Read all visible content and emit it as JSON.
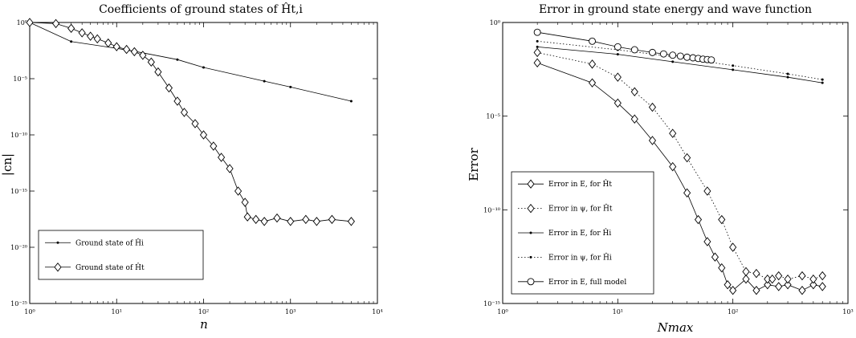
{
  "chart_data": [
    {
      "type": "line",
      "title": "Coefficients of ground states of Ĥt,i",
      "xlabel": "n",
      "ylabel": "|cn|",
      "xscale": "log",
      "yscale": "log",
      "xlim": [
        1,
        10000
      ],
      "ylim": [
        1e-25,
        1
      ],
      "xticks": [
        {
          "value": 1,
          "label": "10⁰"
        },
        {
          "value": 10,
          "label": "10¹"
        },
        {
          "value": 100,
          "label": "10²"
        },
        {
          "value": 1000,
          "label": "10³"
        },
        {
          "value": 10000,
          "label": "10⁴"
        }
      ],
      "yticks": [
        {
          "value": 1,
          "label": "10⁰"
        },
        {
          "value": 1e-05,
          "label": "10⁻⁵"
        },
        {
          "value": 1e-10,
          "label": "10⁻¹⁰"
        },
        {
          "value": 1e-15,
          "label": "10⁻¹⁵"
        },
        {
          "value": 1e-20,
          "label": "10⁻²⁰"
        },
        {
          "value": 1e-25,
          "label": "10⁻²⁵"
        }
      ],
      "legend_position": "bottom-left",
      "series": [
        {
          "name": "Ground state of Ĥi",
          "marker": "dot",
          "linestyle": "solid",
          "x": [
            1,
            3,
            10,
            20,
            50,
            100,
            500,
            1000,
            5000
          ],
          "y": [
            1,
            0.02,
            0.005,
            0.002,
            0.0005,
            0.0001,
            6e-06,
            1.8e-06,
            1e-07
          ]
        },
        {
          "name": "Ground state of Ĥt",
          "marker": "diamond",
          "linestyle": "solid",
          "x": [
            1,
            2,
            3,
            4,
            5,
            6,
            8,
            10,
            13,
            16,
            20,
            25,
            30,
            40,
            50,
            60,
            80,
            100,
            130,
            160,
            200,
            250,
            300,
            320,
            400,
            500,
            700,
            1000,
            1500,
            2000,
            3000,
            5000
          ],
          "y": [
            1,
            0.8,
            0.3,
            0.12,
            0.06,
            0.035,
            0.015,
            0.007,
            0.004,
            0.0025,
            0.0012,
            0.0003,
            4e-05,
            1.5e-06,
            1e-07,
            1e-08,
            1e-09,
            1e-10,
            1e-11,
            1e-12,
            1e-13,
            1e-15,
            1e-16,
            5e-18,
            3e-18,
            2e-18,
            4e-18,
            2e-18,
            3e-18,
            2e-18,
            3e-18,
            2e-18
          ]
        }
      ]
    },
    {
      "type": "line",
      "title": "Error in ground state energy and wave function",
      "xlabel": "Nmax",
      "ylabel": "Error",
      "xscale": "log",
      "yscale": "log",
      "xlim": [
        1,
        1000
      ],
      "ylim": [
        1e-15,
        1
      ],
      "xticks": [
        {
          "value": 1,
          "label": "10⁰"
        },
        {
          "value": 10,
          "label": "10¹"
        },
        {
          "value": 100,
          "label": "10²"
        },
        {
          "value": 1000,
          "label": "10³"
        }
      ],
      "yticks": [
        {
          "value": 1,
          "label": "10⁰"
        },
        {
          "value": 1e-05,
          "label": "10⁻⁵"
        },
        {
          "value": 1e-10,
          "label": "10⁻¹⁰"
        },
        {
          "value": 1e-15,
          "label": "10⁻¹⁵"
        }
      ],
      "legend_position": "bottom-left",
      "series": [
        {
          "name": "Error in E, for Ĥt",
          "marker": "diamond",
          "linestyle": "solid",
          "x": [
            2,
            6,
            10,
            14,
            20,
            30,
            40,
            50,
            60,
            70,
            80,
            90,
            100,
            130,
            160,
            200,
            250,
            300,
            400,
            500,
            600
          ],
          "y": [
            0.007,
            0.0006,
            5e-05,
            7e-06,
            5e-07,
            2e-08,
            8e-10,
            3e-11,
            2e-12,
            3e-13,
            8e-14,
            1e-14,
            5e-15,
            2e-14,
            5e-15,
            1e-14,
            8e-15,
            1e-14,
            5e-15,
            1e-14,
            8e-15
          ]
        },
        {
          "name": "Error in ψ, for Ĥt",
          "marker": "diamond",
          "linestyle": "dotted",
          "x": [
            2,
            6,
            10,
            14,
            20,
            30,
            40,
            60,
            80,
            100,
            130,
            160,
            200,
            220,
            250,
            300,
            400,
            500,
            600
          ],
          "y": [
            0.025,
            0.006,
            0.0012,
            0.0002,
            3e-05,
            1.2e-06,
            6e-08,
            1e-09,
            3e-11,
            1e-12,
            5e-14,
            4e-14,
            2e-14,
            2e-14,
            3e-14,
            2e-14,
            3e-14,
            2e-14,
            3e-14
          ]
        },
        {
          "name": "Error in E, for Ĥi",
          "marker": "dot",
          "linestyle": "solid",
          "x": [
            2,
            10,
            30,
            100,
            300,
            600
          ],
          "y": [
            0.05,
            0.02,
            0.008,
            0.003,
            0.0012,
            0.0006
          ]
        },
        {
          "name": "Error in ψ, for Ĥi",
          "marker": "dot",
          "linestyle": "dotted",
          "x": [
            2,
            10,
            30,
            100,
            300,
            600
          ],
          "y": [
            0.1,
            0.035,
            0.015,
            0.005,
            0.0018,
            0.0009
          ]
        },
        {
          "name": "Error in E, full model",
          "marker": "circle",
          "linestyle": "solid",
          "x": [
            2,
            6,
            10,
            14,
            20,
            25,
            30,
            35,
            40,
            45,
            50,
            55,
            60,
            65
          ],
          "y": [
            0.3,
            0.1,
            0.05,
            0.035,
            0.025,
            0.021,
            0.018,
            0.016,
            0.014,
            0.013,
            0.012,
            0.011,
            0.0105,
            0.01
          ]
        }
      ]
    }
  ]
}
